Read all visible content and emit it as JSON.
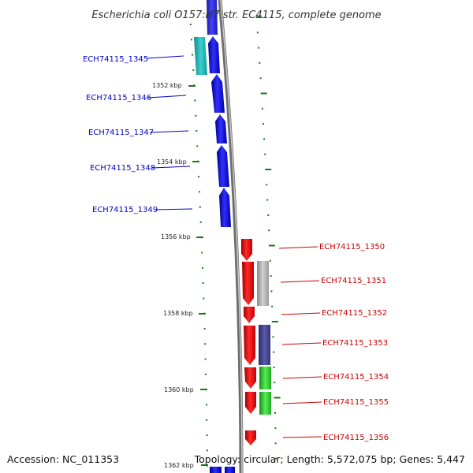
{
  "title": "Escherichia coli O157:H7 str. EC4115, complete genome",
  "footer": {
    "accession": "Accession: NC_011353",
    "topology": "Topology: circular; Length: 5,572,075 bp; Genes: 5,447"
  },
  "colors": {
    "reverse_cds": "#0000ff",
    "forward_cds": "#ff0000",
    "reverse_label": "#0000cc",
    "forward_label": "#cc0000",
    "backbone": "#888888",
    "tick": "#1a7a1a",
    "teal_feature": "#2ab8b8",
    "gray_feature": "#b0b0b0",
    "purple_feature": "#4a4a99",
    "green_feature": "#33cc33"
  },
  "scale_labels": [
    "1352 kbp",
    "1354 kbp",
    "1356 kbp",
    "1358 kbp",
    "1360 kbp",
    "1362 kbp"
  ],
  "reverse_genes": [
    {
      "label": "ECH74115_1345"
    },
    {
      "label": "ECH74115_1346"
    },
    {
      "label": "ECH74115_1347"
    },
    {
      "label": "ECH74115_1348"
    },
    {
      "label": "ECH74115_1349"
    }
  ],
  "forward_genes": [
    {
      "label": "ECH74115_1350"
    },
    {
      "label": "ECH74115_1351"
    },
    {
      "label": "ECH74115_1352"
    },
    {
      "label": "ECH74115_1353"
    },
    {
      "label": "ECH74115_1354"
    },
    {
      "label": "ECH74115_1355"
    },
    {
      "label": "ECH74115_1356"
    }
  ]
}
